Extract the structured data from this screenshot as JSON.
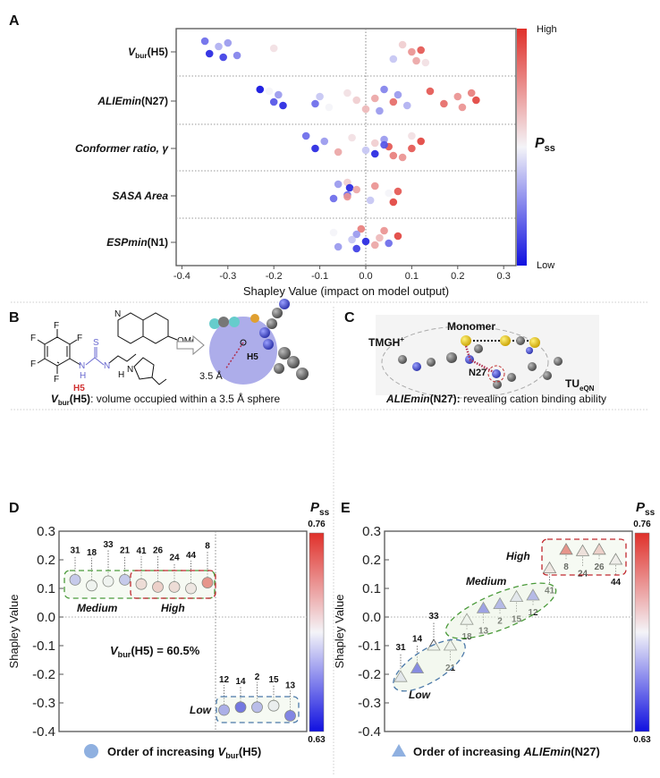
{
  "panel_labels": {
    "a": "A",
    "b": "B",
    "c": "C",
    "d": "D",
    "e": "E"
  },
  "colors": {
    "low": "#1010e0",
    "mid": "#f4f4f8",
    "high": "#e0302a",
    "medium_group": "#4a9a3a",
    "high_group": "#c0282e",
    "low_group": "#4a78a8"
  },
  "chart_data": [
    {
      "id": "A",
      "type": "scatter",
      "subtype": "beeswarm",
      "xlabel": "Shapley Value (impact on model output)",
      "xlim": [
        -0.4,
        0.3
      ],
      "xticks": [
        "-0.4",
        "-0.3",
        "-0.2",
        "-0.1",
        "0.0",
        "0.1",
        "0.2",
        "0.3"
      ],
      "colorbar": {
        "title_main": "P",
        "title_sub": "ss",
        "high_label": "High",
        "low_label": "Low"
      },
      "features": [
        {
          "main": "V",
          "sub": "bur",
          "rest": "(H5)",
          "points": [
            [
              -0.35,
              0.2
            ],
            [
              -0.34,
              0.05
            ],
            [
              -0.32,
              0.35
            ],
            [
              -0.31,
              0.1
            ],
            [
              -0.3,
              0.3
            ],
            [
              -0.28,
              0.25
            ],
            [
              -0.2,
              0.55
            ],
            [
              0.06,
              0.4
            ],
            [
              0.08,
              0.6
            ],
            [
              0.1,
              0.75
            ],
            [
              0.11,
              0.7
            ],
            [
              0.12,
              0.9
            ],
            [
              0.13,
              0.55
            ]
          ]
        },
        {
          "main": "ALIEmin",
          "sub": "",
          "rest": "(N27)",
          "points": [
            [
              -0.23,
              0.0
            ],
            [
              -0.2,
              0.15
            ],
            [
              -0.19,
              0.3
            ],
            [
              -0.18,
              0.05
            ],
            [
              -0.21,
              0.5
            ],
            [
              -0.11,
              0.2
            ],
            [
              -0.1,
              0.4
            ],
            [
              -0.08,
              0.5
            ],
            [
              -0.04,
              0.55
            ],
            [
              -0.02,
              0.6
            ],
            [
              0.0,
              0.65
            ],
            [
              0.02,
              0.7
            ],
            [
              0.03,
              0.3
            ],
            [
              0.04,
              0.25
            ],
            [
              0.06,
              0.85
            ],
            [
              0.07,
              0.3
            ],
            [
              0.09,
              0.35
            ],
            [
              0.14,
              0.9
            ],
            [
              0.17,
              0.85
            ],
            [
              0.2,
              0.75
            ],
            [
              0.21,
              0.75
            ],
            [
              0.23,
              0.8
            ],
            [
              0.24,
              0.95
            ]
          ]
        },
        {
          "main": "Conformer ratio, γ",
          "sub": "",
          "rest": "",
          "points": [
            [
              -0.13,
              0.2
            ],
            [
              -0.11,
              0.05
            ],
            [
              -0.09,
              0.3
            ],
            [
              -0.06,
              0.7
            ],
            [
              -0.03,
              0.55
            ],
            [
              0.0,
              0.4
            ],
            [
              0.02,
              0.6
            ],
            [
              0.02,
              0.05
            ],
            [
              0.04,
              0.3
            ],
            [
              0.05,
              0.9
            ],
            [
              0.06,
              0.8
            ],
            [
              0.04,
              0.15
            ],
            [
              0.08,
              0.75
            ],
            [
              0.1,
              0.55
            ],
            [
              0.1,
              0.9
            ],
            [
              0.12,
              0.95
            ]
          ]
        },
        {
          "main": "SASA Area",
          "sub": "",
          "rest": "",
          "points": [
            [
              -0.04,
              0.6
            ],
            [
              -0.04,
              0.2
            ],
            [
              -0.035,
              0.05
            ],
            [
              -0.07,
              0.2
            ],
            [
              -0.06,
              0.3
            ],
            [
              -0.04,
              0.75
            ],
            [
              -0.02,
              0.7
            ],
            [
              0.01,
              0.4
            ],
            [
              0.02,
              0.75
            ],
            [
              0.05,
              0.5
            ],
            [
              0.06,
              0.95
            ],
            [
              0.07,
              0.9
            ]
          ]
        },
        {
          "main": "ESPmin",
          "sub": "",
          "rest": "(N1)",
          "points": [
            [
              -0.01,
              0.8
            ],
            [
              0.0,
              0.05
            ],
            [
              -0.02,
              0.3
            ],
            [
              0.02,
              0.7
            ],
            [
              0.04,
              0.75
            ],
            [
              0.05,
              0.2
            ],
            [
              0.07,
              0.95
            ],
            [
              -0.06,
              0.3
            ],
            [
              -0.07,
              0.5
            ],
            [
              -0.03,
              0.4
            ],
            [
              -0.02,
              0.1
            ],
            [
              0.03,
              0.65
            ]
          ]
        }
      ]
    },
    {
      "id": "D",
      "type": "scatter",
      "ylabel": "Shapley Value",
      "ylim": [
        -0.4,
        0.3
      ],
      "yticks": [
        "0.3",
        "0.2",
        "0.1",
        "0.0",
        "-0.1",
        "-0.2",
        "-0.3",
        "-0.4"
      ],
      "colorbar": {
        "title_main": "P",
        "title_sub": "ss",
        "max": "0.76",
        "min": "0.63"
      },
      "annotation": {
        "main": "V",
        "sub": "bur",
        "rest": "(H5) = 60.5%"
      },
      "groups": {
        "medium": "Medium",
        "high": "High",
        "low": "Low"
      },
      "legend": {
        "prefix": "Order of increasing ",
        "main": "V",
        "sub": "bur",
        "rest": "(H5)"
      },
      "points": [
        {
          "label": "31",
          "y": 0.13,
          "pss": 0.35,
          "group": "medium"
        },
        {
          "label": "18",
          "y": 0.11,
          "pss": 0.5,
          "group": "medium"
        },
        {
          "label": "33",
          "y": 0.125,
          "pss": 0.5,
          "group": "medium"
        },
        {
          "label": "21",
          "y": 0.13,
          "pss": 0.35,
          "group": "medium"
        },
        {
          "label": "41",
          "y": 0.115,
          "pss": 0.6,
          "group": "high"
        },
        {
          "label": "26",
          "y": 0.105,
          "pss": 0.65,
          "group": "high"
        },
        {
          "label": "24",
          "y": 0.105,
          "pss": 0.6,
          "group": "high"
        },
        {
          "label": "44",
          "y": 0.1,
          "pss": 0.55,
          "group": "high"
        },
        {
          "label": "8",
          "y": 0.12,
          "pss": 0.9,
          "group": "high"
        },
        {
          "label": "12",
          "y": -0.325,
          "pss": 0.25,
          "group": "low"
        },
        {
          "label": "14",
          "y": -0.315,
          "pss": 0.05,
          "group": "low"
        },
        {
          "label": "2",
          "y": -0.315,
          "pss": 0.3,
          "group": "low"
        },
        {
          "label": "15",
          "y": -0.31,
          "pss": 0.48,
          "group": "low"
        },
        {
          "label": "13",
          "y": -0.345,
          "pss": 0.1,
          "group": "low"
        }
      ]
    },
    {
      "id": "E",
      "type": "scatter",
      "ylabel": "Shapley Value",
      "ylim": [
        -0.4,
        0.3
      ],
      "yticks": [
        "0.3",
        "0.2",
        "0.1",
        "0.0",
        "-0.1",
        "-0.2",
        "-0.3",
        "-0.4"
      ],
      "colorbar": {
        "title_main": "P",
        "title_sub": "ss",
        "max": "0.76",
        "min": "0.63"
      },
      "groups": {
        "medium": "Medium",
        "high": "High",
        "low": "Low"
      },
      "legend": {
        "prefix": "Order of increasing ",
        "main": "ALIEmin",
        "sub": "",
        "rest": "(N27)"
      },
      "points": [
        {
          "label": "31",
          "y": -0.21,
          "pss": 0.45,
          "group": "medium"
        },
        {
          "label": "14",
          "y": -0.18,
          "pss": 0.05,
          "group": "low"
        },
        {
          "label": "33",
          "y": -0.1,
          "pss": 0.5,
          "group": "medium"
        },
        {
          "label": "21",
          "y": -0.1,
          "pss": 0.5,
          "group": "medium"
        },
        {
          "label": "18",
          "y": -0.01,
          "pss": 0.5,
          "group": "medium"
        },
        {
          "label": "13",
          "y": 0.03,
          "pss": 0.15,
          "group": "low"
        },
        {
          "label": "2",
          "y": 0.045,
          "pss": 0.25,
          "group": "low"
        },
        {
          "label": "15",
          "y": 0.07,
          "pss": 0.45,
          "group": "low"
        },
        {
          "label": "12",
          "y": 0.075,
          "pss": 0.25,
          "group": "low"
        },
        {
          "label": "41",
          "y": 0.17,
          "pss": 0.55,
          "group": "high"
        },
        {
          "label": "8",
          "y": 0.235,
          "pss": 0.9,
          "group": "high"
        },
        {
          "label": "24",
          "y": 0.23,
          "pss": 0.58,
          "group": "high"
        },
        {
          "label": "26",
          "y": 0.235,
          "pss": 0.65,
          "group": "high"
        },
        {
          "label": "44",
          "y": 0.2,
          "pss": 0.52,
          "group": "high"
        }
      ]
    }
  ],
  "panel_b": {
    "atom_f": "F",
    "atom_s": "S",
    "atom_n": "N",
    "atom_h": "H",
    "ome": "OMe",
    "h5_label": "H5",
    "radius_label": "3.5 Å",
    "caption": {
      "main": "V",
      "sub": "bur",
      "rest": "(H5)",
      "desc": ": volume occupied within a 3.5 Å sphere"
    }
  },
  "panel_c": {
    "monomer": "Monomer",
    "tmgh": "TMGH",
    "tmgh_sup": "+",
    "n27": "N27",
    "tu": "TU",
    "tu_sub": "eQN",
    "caption": {
      "main": "ALIEmin",
      "rest": "(N27):",
      "desc": " revealing cation binding ability"
    }
  }
}
